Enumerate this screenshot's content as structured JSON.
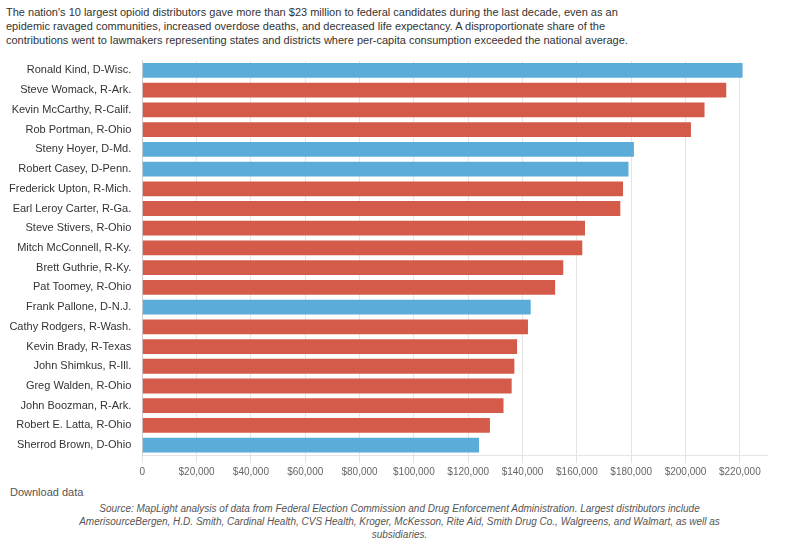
{
  "chart_data": {
    "type": "bar",
    "orientation": "horizontal",
    "subtitle": [
      "The nation's 10 largest opioid distributors gave more than $23 million to federal candidates during the last decade, even as an",
      "epidemic ravaged communities, increased overdose deaths, and decreased life expectancy. A disproportionate share of the",
      "contributions went to lawmakers representing states and districts where per-capita consumption exceeded the national average."
    ],
    "annotations": [
      "Download data",
      "Source: MapLight analysis of data from Federal Election Commission and Drug Enforcement Administration. Largest distributors include",
      "AmerisourceBergen, H.D. Smith, Cardinal Health, CVS Health, Kroger, McKesson, Rite Aid, Smith Drug Co., Walgreens, and Walmart, as well as",
      "subsidiaries."
    ],
    "categories": [
      "Ronald Kind, D-Wisc.",
      "Steve Womack, R-Ark.",
      "Kevin McCarthy, R-Calif.",
      "Rob Portman, R-Ohio",
      "Steny Hoyer, D-Md.",
      "Robert Casey, D-Penn.",
      "Frederick Upton, R-Mich.",
      "Earl Leroy Carter, R-Ga.",
      "Steve Stivers, R-Ohio",
      "Mitch McConnell, R-Ky.",
      "Brett Guthrie, R-Ky.",
      "Pat Toomey, R-Ohio",
      "Frank Pallone, D-N.J.",
      "Cathy Rodgers, R-Wash.",
      "Kevin Brady, R-Texas",
      "John Shimkus, R-Ill.",
      "Greg Walden, R-Ohio",
      "John Boozman, R-Ark.",
      "Robert E. Latta, R-Ohio",
      "Sherrod Brown, D-Ohio"
    ],
    "values": [
      221000,
      215000,
      207000,
      202000,
      181000,
      179000,
      177000,
      176000,
      163000,
      162000,
      155000,
      152000,
      143000,
      142000,
      138000,
      137000,
      136000,
      133000,
      128000,
      124000
    ],
    "colors": [
      "#5BACD8",
      "#D45B4A",
      "#D45B4A",
      "#D45B4A",
      "#5BACD8",
      "#5BACD8",
      "#D45B4A",
      "#D45B4A",
      "#D45B4A",
      "#D45B4A",
      "#D45B4A",
      "#D45B4A",
      "#5BACD8",
      "#D45B4A",
      "#D45B4A",
      "#D45B4A",
      "#D45B4A",
      "#D45B4A",
      "#D45B4A",
      "#5BACD8"
    ],
    "xlim": [
      0,
      230000
    ],
    "xticks": [
      0,
      {
        "value": 20000,
        "label": "$20,000"
      },
      {
        "value": 40000,
        "label": "$40,000"
      },
      {
        "value": 60000,
        "label": "$60,000"
      },
      {
        "value": 80000,
        "label": "$80,000"
      },
      {
        "value": 100000,
        "label": "$100,000"
      },
      {
        "value": 120000,
        "label": "$120,000"
      },
      {
        "value": 140000,
        "label": "$140,000"
      },
      {
        "value": 160000,
        "label": "$160,000"
      },
      {
        "value": 180000,
        "label": "$180,000"
      },
      {
        "value": 200000,
        "label": "$200,000"
      },
      {
        "value": 220000,
        "label": "$220,000"
      }
    ],
    "grid": true
  }
}
